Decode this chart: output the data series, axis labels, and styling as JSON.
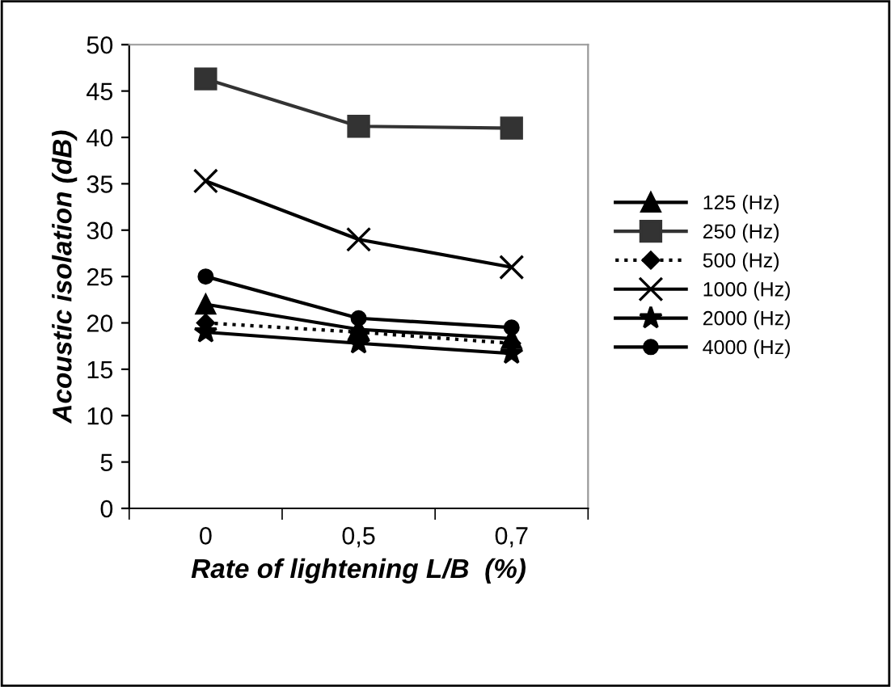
{
  "chart_data": {
    "type": "line",
    "xlabel": "Rate of lightening L/B  (%)",
    "ylabel": "Acoustic isolation (dB)",
    "categories": [
      "0",
      "0,5",
      "0,7"
    ],
    "ylim": [
      0,
      50
    ],
    "yticks": [
      0,
      5,
      10,
      15,
      20,
      25,
      30,
      35,
      40,
      45,
      50
    ],
    "grid": false,
    "legend": "right",
    "series": [
      {
        "name": "125 (Hz)",
        "color": "#000000",
        "marker": "triangle",
        "line_style": "solid",
        "values": [
          22,
          19.3,
          18.3
        ]
      },
      {
        "name": "250 (Hz)",
        "color": "#333333",
        "marker": "square",
        "line_style": "solid",
        "values": [
          46.3,
          41.2,
          41
        ]
      },
      {
        "name": "500 (Hz)",
        "color": "#000000",
        "marker": "diamond",
        "line_style": "dotted",
        "values": [
          20,
          19,
          17.8
        ]
      },
      {
        "name": "1000 (Hz)",
        "color": "#000000",
        "marker": "cross",
        "line_style": "solid",
        "values": [
          35.3,
          29,
          26
        ]
      },
      {
        "name": "2000 (Hz)",
        "color": "#000000",
        "marker": "star",
        "line_style": "solid",
        "values": [
          19,
          17.8,
          16.7
        ]
      },
      {
        "name": "4000 (Hz)",
        "color": "#000000",
        "marker": "circle",
        "line_style": "solid",
        "values": [
          25,
          20.5,
          19.5
        ]
      }
    ]
  }
}
